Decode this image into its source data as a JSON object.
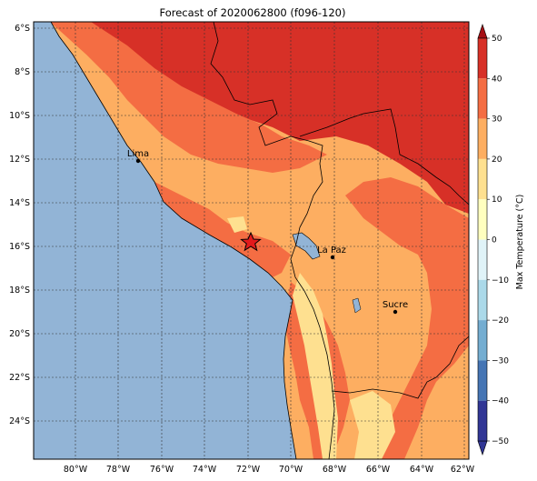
{
  "title": "Forecast of 2020062800 (f096-120)",
  "map": {
    "lat_labels": [
      "6°S",
      "8°S",
      "10°S",
      "12°S",
      "14°S",
      "16°S",
      "18°S",
      "20°S",
      "22°S",
      "24°S"
    ],
    "lon_labels": [
      "80°W",
      "78°W",
      "76°W",
      "74°W",
      "72°W",
      "70°W",
      "68°W",
      "66°W",
      "64°W",
      "62°W"
    ],
    "cities": [
      {
        "name": "Lima",
        "lon": -77.0,
        "lat": -12.05
      },
      {
        "name": "La Paz",
        "lon": -68.1,
        "lat": -16.5
      },
      {
        "name": "Sucre",
        "lon": -65.2,
        "lat": -19.0
      }
    ],
    "star": {
      "lon": -71.9,
      "lat": -15.8,
      "icon": "star-marker-icon"
    },
    "ocean_color": "#92b4d6",
    "border_color": "#000000"
  },
  "colorbar": {
    "label": "Max Temperature (°C)",
    "ticks": [
      "50",
      "40",
      "30",
      "20",
      "10",
      "0",
      "−10",
      "−20",
      "−30",
      "−40",
      "−50"
    ],
    "colors": [
      "#67001f",
      "#b2182b",
      "#d6604d",
      "#f4a582",
      "#fddbc7",
      "#fefef0",
      "#d1e5f0",
      "#92c5de",
      "#4393c3",
      "#2166ac",
      "#053061"
    ],
    "band_colors_top_to_bottom": [
      "#a50f15",
      "#d73027",
      "#f46d43",
      "#fdae61",
      "#fee090",
      "#ffffbf",
      "#e0f3f8",
      "#abd9e9",
      "#74add1",
      "#4575b4",
      "#313695"
    ]
  }
}
